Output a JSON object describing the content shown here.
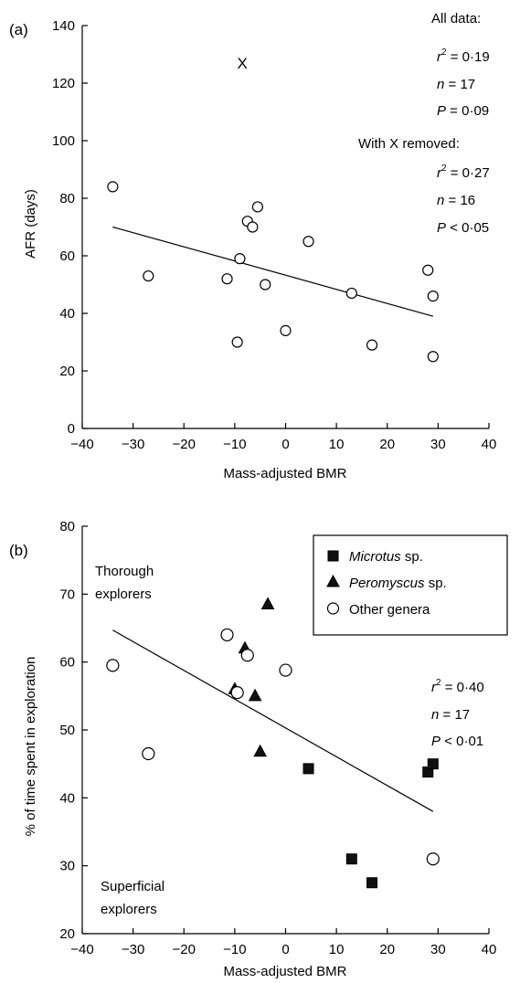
{
  "chart_data": [
    {
      "type": "scatter",
      "panel_label": "(a)",
      "xlabel": "Mass-adjusted BMR",
      "ylabel": "AFR (days)",
      "xlim": [
        -40,
        40
      ],
      "ylim": [
        0,
        140
      ],
      "xticks": [
        -40,
        -30,
        -20,
        -10,
        0,
        10,
        20,
        30,
        40
      ],
      "yticks": [
        0,
        20,
        40,
        60,
        80,
        100,
        120,
        140
      ],
      "grid": false,
      "points": [
        {
          "x": -34,
          "y": 84
        },
        {
          "x": -27,
          "y": 53
        },
        {
          "x": -11.5,
          "y": 52
        },
        {
          "x": -9.5,
          "y": 30
        },
        {
          "x": -9,
          "y": 59
        },
        {
          "x": -7.5,
          "y": 72
        },
        {
          "x": -6.5,
          "y": 70
        },
        {
          "x": -5.5,
          "y": 77
        },
        {
          "x": -4,
          "y": 50
        },
        {
          "x": 0,
          "y": 34
        },
        {
          "x": 4.5,
          "y": 65
        },
        {
          "x": 13,
          "y": 47
        },
        {
          "x": 17,
          "y": 29
        },
        {
          "x": 28,
          "y": 55
        },
        {
          "x": 29,
          "y": 46
        },
        {
          "x": 29,
          "y": 25
        }
      ],
      "outlier": {
        "label": "X",
        "x": -8.5,
        "y": 127
      },
      "fit_line": {
        "x": [
          -34,
          29
        ],
        "y": [
          70,
          39
        ]
      },
      "annotations": {
        "all_data_title": "All data:",
        "all_data": [
          "0·19",
          "17",
          "0·09"
        ],
        "removed_title": "With X removed:",
        "removed": [
          "0·27",
          "16",
          "< 0·05"
        ]
      }
    },
    {
      "type": "scatter",
      "panel_label": "(b)",
      "xlabel": "Mass-adjusted BMR",
      "ylabel": "% of time spent in exploration",
      "xlim": [
        -40,
        40
      ],
      "ylim": [
        20,
        80
      ],
      "xticks": [
        -40,
        -30,
        -20,
        -10,
        0,
        10,
        20,
        30,
        40
      ],
      "yticks": [
        20,
        30,
        40,
        50,
        60,
        70,
        80
      ],
      "grid": false,
      "legend": "top-right",
      "series": [
        {
          "name": "Microtus",
          "suffix": " sp.",
          "marker": "square",
          "points": [
            {
              "x": 4.5,
              "y": 44.3
            },
            {
              "x": 13,
              "y": 31
            },
            {
              "x": 17,
              "y": 27.5
            },
            {
              "x": 28,
              "y": 43.8
            },
            {
              "x": 29,
              "y": 45
            }
          ]
        },
        {
          "name": "Peromyscus",
          "suffix": " sp.",
          "marker": "triangle",
          "points": [
            {
              "x": -10,
              "y": 56
            },
            {
              "x": -8,
              "y": 62
            },
            {
              "x": -6,
              "y": 55
            },
            {
              "x": -5,
              "y": 46.8
            },
            {
              "x": -3.5,
              "y": 68.5
            }
          ]
        },
        {
          "name": "Other genera",
          "suffix": "",
          "marker": "circle",
          "points": [
            {
              "x": -34,
              "y": 59.5
            },
            {
              "x": -27,
              "y": 46.5
            },
            {
              "x": -11.5,
              "y": 64
            },
            {
              "x": -9.5,
              "y": 55.5
            },
            {
              "x": -7.5,
              "y": 61
            },
            {
              "x": 0,
              "y": 58.8
            },
            {
              "x": 29,
              "y": 31
            }
          ]
        }
      ],
      "fit_line": {
        "x": [
          -34,
          29
        ],
        "y": [
          64.7,
          38
        ]
      },
      "annotations": {
        "stats": [
          "0·40",
          "17",
          "< 0·01"
        ],
        "top_left": [
          "Thorough",
          "explorers"
        ],
        "bottom_left": [
          "Superficial",
          "explorers"
        ]
      }
    }
  ]
}
